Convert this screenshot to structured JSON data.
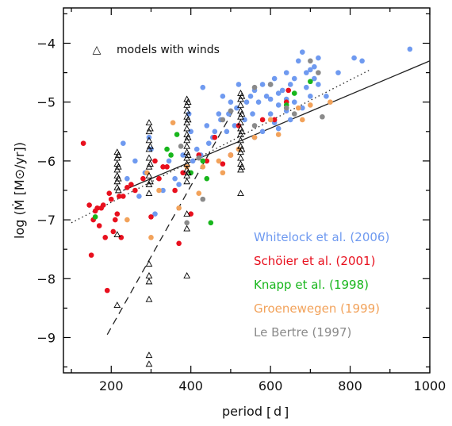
{
  "chart_data": {
    "type": "scatter",
    "xlabel": "period",
    "xunit": "d",
    "ylabel": "log (Ṁ [M⊙/yr])",
    "xlim": [
      80,
      1000
    ],
    "ylim": [
      -9.6,
      -3.4
    ],
    "xticks": [
      200,
      400,
      600,
      800,
      1000
    ],
    "yticks": [
      -4,
      -5,
      -6,
      -7,
      -8,
      -9
    ],
    "grid": false,
    "legend_position": "bottom-right",
    "annotation": "models with winds",
    "series": [
      {
        "name": "Whitelock et al. (2006)",
        "color": "#6f9af0",
        "points": [
          [
            950,
            -4.1
          ],
          [
            830,
            -4.3
          ],
          [
            810,
            -4.25
          ],
          [
            770,
            -4.5
          ],
          [
            720,
            -4.25
          ],
          [
            710,
            -4.4
          ],
          [
            700,
            -4.45
          ],
          [
            690,
            -4.5
          ],
          [
            680,
            -4.15
          ],
          [
            670,
            -4.3
          ],
          [
            660,
            -4.6
          ],
          [
            650,
            -4.7
          ],
          [
            640,
            -4.5
          ],
          [
            630,
            -4.8
          ],
          [
            620,
            -4.85
          ],
          [
            610,
            -4.6
          ],
          [
            600,
            -4.7
          ],
          [
            590,
            -4.9
          ],
          [
            580,
            -4.7
          ],
          [
            570,
            -5.0
          ],
          [
            560,
            -4.8
          ],
          [
            555,
            -5.2
          ],
          [
            550,
            -4.9
          ],
          [
            540,
            -5.0
          ],
          [
            535,
            -5.3
          ],
          [
            520,
            -4.7
          ],
          [
            515,
            -5.1
          ],
          [
            510,
            -5.4
          ],
          [
            500,
            -5.0
          ],
          [
            495,
            -5.2
          ],
          [
            490,
            -5.5
          ],
          [
            480,
            -4.9
          ],
          [
            475,
            -5.3
          ],
          [
            470,
            -5.2
          ],
          [
            460,
            -5.5
          ],
          [
            455,
            -5.6
          ],
          [
            445,
            -5.7
          ],
          [
            440,
            -5.4
          ],
          [
            430,
            -4.75
          ],
          [
            425,
            -5.9
          ],
          [
            415,
            -5.8
          ],
          [
            405,
            -6.0
          ],
          [
            400,
            -5.5
          ],
          [
            395,
            -5.2
          ],
          [
            380,
            -5.9
          ],
          [
            370,
            -6.4
          ],
          [
            360,
            -6.3
          ],
          [
            345,
            -6.0
          ],
          [
            330,
            -6.5
          ],
          [
            310,
            -6.9
          ],
          [
            300,
            -5.8
          ],
          [
            295,
            -5.6
          ],
          [
            285,
            -6.2
          ],
          [
            270,
            -6.6
          ],
          [
            260,
            -6.0
          ],
          [
            240,
            -6.3
          ],
          [
            230,
            -5.7
          ],
          [
            600,
            -5.2
          ],
          [
            610,
            -5.35
          ],
          [
            620,
            -5.45
          ],
          [
            640,
            -5.15
          ],
          [
            660,
            -5.0
          ],
          [
            680,
            -5.1
          ],
          [
            700,
            -4.9
          ],
          [
            720,
            -4.7
          ],
          [
            580,
            -5.5
          ],
          [
            560,
            -5.6
          ],
          [
            650,
            -5.3
          ],
          [
            740,
            -4.9
          ],
          [
            690,
            -4.75
          ],
          [
            710,
            -4.6
          ],
          [
            600,
            -4.95
          ],
          [
            620,
            -5.05
          ],
          [
            640,
            -4.95
          ]
        ]
      },
      {
        "name": "Schöier et al. (2001)",
        "color": "#e8101e",
        "points": [
          [
            130,
            -5.7
          ],
          [
            145,
            -6.75
          ],
          [
            150,
            -7.6
          ],
          [
            155,
            -7.0
          ],
          [
            160,
            -6.85
          ],
          [
            165,
            -6.8
          ],
          [
            170,
            -7.1
          ],
          [
            175,
            -6.8
          ],
          [
            180,
            -6.75
          ],
          [
            185,
            -7.3
          ],
          [
            190,
            -8.2
          ],
          [
            195,
            -6.55
          ],
          [
            200,
            -6.65
          ],
          [
            205,
            -7.2
          ],
          [
            210,
            -7.0
          ],
          [
            215,
            -6.9
          ],
          [
            220,
            -6.6
          ],
          [
            225,
            -7.3
          ],
          [
            230,
            -6.6
          ],
          [
            240,
            -6.45
          ],
          [
            250,
            -6.4
          ],
          [
            260,
            -6.5
          ],
          [
            280,
            -6.3
          ],
          [
            300,
            -6.95
          ],
          [
            310,
            -6.0
          ],
          [
            320,
            -6.3
          ],
          [
            330,
            -6.1
          ],
          [
            340,
            -6.1
          ],
          [
            360,
            -6.5
          ],
          [
            370,
            -7.4
          ],
          [
            380,
            -6.2
          ],
          [
            400,
            -6.9
          ],
          [
            420,
            -5.9
          ],
          [
            440,
            -6.0
          ],
          [
            460,
            -5.6
          ],
          [
            480,
            -6.05
          ],
          [
            500,
            -5.9
          ],
          [
            520,
            -5.4
          ],
          [
            580,
            -5.3
          ],
          [
            610,
            -5.3
          ],
          [
            640,
            -5.0
          ],
          [
            645,
            -4.8
          ]
        ]
      },
      {
        "name": "Knapp et al. (1998)",
        "color": "#18b61c",
        "points": [
          [
            160,
            -6.95
          ],
          [
            340,
            -5.8
          ],
          [
            365,
            -5.55
          ],
          [
            400,
            -6.2
          ],
          [
            430,
            -6.0
          ],
          [
            440,
            -6.3
          ],
          [
            450,
            -7.05
          ],
          [
            640,
            -5.05
          ],
          [
            660,
            -4.85
          ],
          [
            700,
            -4.65
          ],
          [
            350,
            -5.9
          ]
        ]
      },
      {
        "name": "Groenewegen (1999)",
        "color": "#f2a25a",
        "points": [
          [
            240,
            -7.0
          ],
          [
            290,
            -6.2
          ],
          [
            300,
            -7.3
          ],
          [
            320,
            -6.5
          ],
          [
            355,
            -5.35
          ],
          [
            370,
            -6.8
          ],
          [
            390,
            -6.1
          ],
          [
            420,
            -6.55
          ],
          [
            480,
            -6.2
          ],
          [
            500,
            -5.9
          ],
          [
            560,
            -5.6
          ],
          [
            600,
            -5.3
          ],
          [
            620,
            -5.55
          ],
          [
            670,
            -5.1
          ],
          [
            680,
            -5.3
          ],
          [
            700,
            -5.05
          ],
          [
            750,
            -5.0
          ],
          [
            430,
            -6.1
          ],
          [
            470,
            -6.0
          ],
          [
            520,
            -5.8
          ]
        ]
      },
      {
        "name": "Le Bertre (1997)",
        "color": "#8a8a8a",
        "points": [
          [
            390,
            -7.05
          ],
          [
            375,
            -5.75
          ],
          [
            420,
            -5.95
          ],
          [
            430,
            -6.65
          ],
          [
            480,
            -5.3
          ],
          [
            500,
            -5.15
          ],
          [
            560,
            -5.4
          ],
          [
            640,
            -5.1
          ],
          [
            660,
            -5.2
          ],
          [
            700,
            -4.3
          ],
          [
            720,
            -4.5
          ],
          [
            730,
            -5.25
          ],
          [
            600,
            -4.7
          ],
          [
            560,
            -4.75
          ]
        ]
      },
      {
        "name": "models with winds",
        "marker": "triangle",
        "color": "#000000",
        "points": [
          [
            215,
            -5.85
          ],
          [
            215,
            -5.95
          ],
          [
            215,
            -6.05
          ],
          [
            215,
            -6.15
          ],
          [
            215,
            -6.25
          ],
          [
            215,
            -6.35
          ],
          [
            215,
            -6.45
          ],
          [
            218,
            -5.9
          ],
          [
            218,
            -6.1
          ],
          [
            218,
            -6.3
          ],
          [
            218,
            -6.5
          ],
          [
            215,
            -7.25
          ],
          [
            215,
            -8.45
          ],
          [
            295,
            -5.35
          ],
          [
            295,
            -5.5
          ],
          [
            295,
            -5.65
          ],
          [
            295,
            -5.8
          ],
          [
            295,
            -5.95
          ],
          [
            295,
            -6.1
          ],
          [
            295,
            -6.25
          ],
          [
            295,
            -6.4
          ],
          [
            295,
            -6.55
          ],
          [
            298,
            -5.45
          ],
          [
            298,
            -5.75
          ],
          [
            298,
            -6.05
          ],
          [
            298,
            -6.35
          ],
          [
            295,
            -7.75
          ],
          [
            295,
            -7.95
          ],
          [
            295,
            -8.05
          ],
          [
            295,
            -8.35
          ],
          [
            295,
            -9.3
          ],
          [
            295,
            -9.45
          ],
          [
            390,
            -4.95
          ],
          [
            390,
            -5.05
          ],
          [
            390,
            -5.15
          ],
          [
            390,
            -5.25
          ],
          [
            390,
            -5.35
          ],
          [
            390,
            -5.45
          ],
          [
            390,
            -5.55
          ],
          [
            390,
            -5.65
          ],
          [
            390,
            -5.75
          ],
          [
            390,
            -5.85
          ],
          [
            390,
            -5.95
          ],
          [
            390,
            -6.05
          ],
          [
            390,
            -6.15
          ],
          [
            390,
            -6.25
          ],
          [
            390,
            -6.35
          ],
          [
            393,
            -5.0
          ],
          [
            393,
            -5.3
          ],
          [
            393,
            -5.6
          ],
          [
            393,
            -5.9
          ],
          [
            393,
            -6.2
          ],
          [
            390,
            -6.9
          ],
          [
            390,
            -7.15
          ],
          [
            390,
            -7.95
          ],
          [
            525,
            -4.85
          ],
          [
            525,
            -4.95
          ],
          [
            525,
            -5.05
          ],
          [
            525,
            -5.15
          ],
          [
            525,
            -5.25
          ],
          [
            525,
            -5.35
          ],
          [
            525,
            -5.45
          ],
          [
            525,
            -5.55
          ],
          [
            525,
            -5.65
          ],
          [
            525,
            -5.75
          ],
          [
            525,
            -5.85
          ],
          [
            525,
            -5.95
          ],
          [
            525,
            -6.05
          ],
          [
            525,
            -6.15
          ],
          [
            528,
            -4.9
          ],
          [
            528,
            -5.2
          ],
          [
            528,
            -5.5
          ],
          [
            528,
            -5.8
          ],
          [
            528,
            -6.1
          ],
          [
            525,
            -6.55
          ]
        ]
      }
    ],
    "lines": [
      {
        "style": "solid",
        "points": [
          [
            230,
            -6.5
          ],
          [
            1000,
            -4.3
          ]
        ]
      },
      {
        "style": "dotted",
        "points": [
          [
            100,
            -7.05
          ],
          [
            850,
            -4.45
          ]
        ]
      },
      {
        "style": "dashed",
        "points": [
          [
            190,
            -8.95
          ],
          [
            510,
            -5.1
          ]
        ]
      }
    ]
  }
}
